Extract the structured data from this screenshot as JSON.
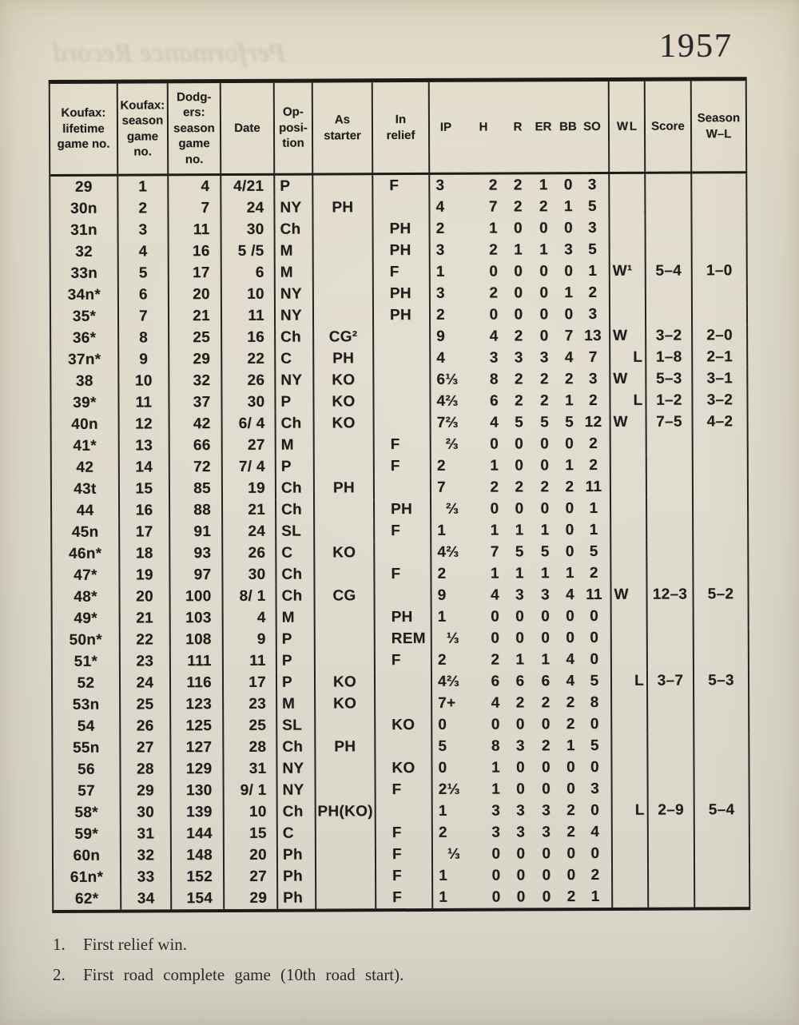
{
  "page": {
    "year": "1957",
    "ghost_text": "Performance Record"
  },
  "table": {
    "headers": {
      "lifetime": "Koufax:\nlifetime\ngame no.",
      "season": "Koufax:\nseason\ngame no.",
      "dodgers": "Dodg-\ners:\nseason\ngame\nno.",
      "date": "Date",
      "opposition": "Op-\nposi-\ntion",
      "as_starter": "As\nstarter",
      "in_relief": "In\nrelief",
      "w_label": "W",
      "l_label": "L",
      "score": "Score",
      "season_wl": "Season\nW–L"
    },
    "stat_headers": [
      "IP",
      "H",
      "R",
      "ER",
      "BB",
      "SO"
    ],
    "rows": [
      {
        "lg": "29",
        "sg": "1",
        "dg": "4",
        "date": "4/21",
        "opp": "P",
        "st": "",
        "rel": "F",
        "ipw": "3",
        "ipf": "",
        "h": "2",
        "r": "2",
        "er": "1",
        "bb": "0",
        "so": "3",
        "w": "",
        "l": "",
        "sc": "",
        "swl": ""
      },
      {
        "lg": "30n",
        "sg": "2",
        "dg": "7",
        "date": "24",
        "opp": "NY",
        "st": "PH",
        "rel": "",
        "ipw": "4",
        "ipf": "",
        "h": "7",
        "r": "2",
        "er": "2",
        "bb": "1",
        "so": "5",
        "w": "",
        "l": "",
        "sc": "",
        "swl": ""
      },
      {
        "lg": "31n",
        "sg": "3",
        "dg": "11",
        "date": "30",
        "opp": "Ch",
        "st": "",
        "rel": "PH",
        "ipw": "2",
        "ipf": "",
        "h": "1",
        "r": "0",
        "er": "0",
        "bb": "0",
        "so": "3",
        "w": "",
        "l": "",
        "sc": "",
        "swl": ""
      },
      {
        "lg": "32",
        "sg": "4",
        "dg": "16",
        "date": "5 /5",
        "opp": "M",
        "st": "",
        "rel": "PH",
        "ipw": "3",
        "ipf": "",
        "h": "2",
        "r": "1",
        "er": "1",
        "bb": "3",
        "so": "5",
        "w": "",
        "l": "",
        "sc": "",
        "swl": ""
      },
      {
        "lg": "33n",
        "sg": "5",
        "dg": "17",
        "date": "6",
        "opp": "M",
        "st": "",
        "rel": "F",
        "ipw": "1",
        "ipf": "",
        "h": "0",
        "r": "0",
        "er": "0",
        "bb": "0",
        "so": "1",
        "w": "W¹",
        "l": "",
        "sc": "5–4",
        "swl": "1–0"
      },
      {
        "lg": "34n*",
        "sg": "6",
        "dg": "20",
        "date": "10",
        "opp": "NY",
        "st": "",
        "rel": "PH",
        "ipw": "3",
        "ipf": "",
        "h": "2",
        "r": "0",
        "er": "0",
        "bb": "1",
        "so": "2",
        "w": "",
        "l": "",
        "sc": "",
        "swl": ""
      },
      {
        "lg": "35*",
        "sg": "7",
        "dg": "21",
        "date": "11",
        "opp": "NY",
        "st": "",
        "rel": "PH",
        "ipw": "2",
        "ipf": "",
        "h": "0",
        "r": "0",
        "er": "0",
        "bb": "0",
        "so": "3",
        "w": "",
        "l": "",
        "sc": "",
        "swl": ""
      },
      {
        "lg": "36*",
        "sg": "8",
        "dg": "25",
        "date": "16",
        "opp": "Ch",
        "st": "CG²",
        "rel": "",
        "ipw": "9",
        "ipf": "",
        "h": "4",
        "r": "2",
        "er": "0",
        "bb": "7",
        "so": "13",
        "w": "W",
        "l": "",
        "sc": "3–2",
        "swl": "2–0"
      },
      {
        "lg": "37n*",
        "sg": "9",
        "dg": "29",
        "date": "22",
        "opp": "C",
        "st": "PH",
        "rel": "",
        "ipw": "4",
        "ipf": "",
        "h": "3",
        "r": "3",
        "er": "3",
        "bb": "4",
        "so": "7",
        "w": "",
        "l": "L",
        "sc": "1–8",
        "swl": "2–1"
      },
      {
        "lg": "38",
        "sg": "10",
        "dg": "32",
        "date": "26",
        "opp": "NY",
        "st": "KO",
        "rel": "",
        "ipw": "6",
        "ipf": "⅓",
        "h": "8",
        "r": "2",
        "er": "2",
        "bb": "2",
        "so": "3",
        "w": "W",
        "l": "",
        "sc": "5–3",
        "swl": "3–1"
      },
      {
        "lg": "39*",
        "sg": "11",
        "dg": "37",
        "date": "30",
        "opp": "P",
        "st": "KO",
        "rel": "",
        "ipw": "4",
        "ipf": "⅔",
        "h": "6",
        "r": "2",
        "er": "2",
        "bb": "1",
        "so": "2",
        "w": "",
        "l": "L",
        "sc": "1–2",
        "swl": "3–2"
      },
      {
        "lg": "40n",
        "sg": "12",
        "dg": "42",
        "date": "6/ 4",
        "opp": "Ch",
        "st": "KO",
        "rel": "",
        "ipw": "7",
        "ipf": "⅔",
        "h": "4",
        "r": "5",
        "er": "5",
        "bb": "5",
        "so": "12",
        "w": "W",
        "l": "",
        "sc": "7–5",
        "swl": "4–2"
      },
      {
        "lg": "41*",
        "sg": "13",
        "dg": "66",
        "date": "27",
        "opp": "M",
        "st": "",
        "rel": "F",
        "ipw": "",
        "ipf": "⅔",
        "h": "0",
        "r": "0",
        "er": "0",
        "bb": "0",
        "so": "2",
        "w": "",
        "l": "",
        "sc": "",
        "swl": ""
      },
      {
        "lg": "42",
        "sg": "14",
        "dg": "72",
        "date": "7/ 4",
        "opp": "P",
        "st": "",
        "rel": "F",
        "ipw": "2",
        "ipf": "",
        "h": "1",
        "r": "0",
        "er": "0",
        "bb": "1",
        "so": "2",
        "w": "",
        "l": "",
        "sc": "",
        "swl": ""
      },
      {
        "lg": "43t",
        "sg": "15",
        "dg": "85",
        "date": "19",
        "opp": "Ch",
        "st": "PH",
        "rel": "",
        "ipw": "7",
        "ipf": "",
        "h": "2",
        "r": "2",
        "er": "2",
        "bb": "2",
        "so": "11",
        "w": "",
        "l": "",
        "sc": "",
        "swl": ""
      },
      {
        "lg": "44",
        "sg": "16",
        "dg": "88",
        "date": "21",
        "opp": "Ch",
        "st": "",
        "rel": "PH",
        "ipw": "",
        "ipf": "⅔",
        "h": "0",
        "r": "0",
        "er": "0",
        "bb": "0",
        "so": "1",
        "w": "",
        "l": "",
        "sc": "",
        "swl": ""
      },
      {
        "lg": "45n",
        "sg": "17",
        "dg": "91",
        "date": "24",
        "opp": "SL",
        "st": "",
        "rel": "F",
        "ipw": "1",
        "ipf": "",
        "h": "1",
        "r": "1",
        "er": "1",
        "bb": "0",
        "so": "1",
        "w": "",
        "l": "",
        "sc": "",
        "swl": ""
      },
      {
        "lg": "46n*",
        "sg": "18",
        "dg": "93",
        "date": "26",
        "opp": "C",
        "st": "KO",
        "rel": "",
        "ipw": "4",
        "ipf": "⅔",
        "h": "7",
        "r": "5",
        "er": "5",
        "bb": "0",
        "so": "5",
        "w": "",
        "l": "",
        "sc": "",
        "swl": ""
      },
      {
        "lg": "47*",
        "sg": "19",
        "dg": "97",
        "date": "30",
        "opp": "Ch",
        "st": "",
        "rel": "F",
        "ipw": "2",
        "ipf": "",
        "h": "1",
        "r": "1",
        "er": "1",
        "bb": "1",
        "so": "2",
        "w": "",
        "l": "",
        "sc": "",
        "swl": ""
      },
      {
        "lg": "48*",
        "sg": "20",
        "dg": "100",
        "date": "8/ 1",
        "opp": "Ch",
        "st": "CG",
        "rel": "",
        "ipw": "9",
        "ipf": "",
        "h": "4",
        "r": "3",
        "er": "3",
        "bb": "4",
        "so": "11",
        "w": "W",
        "l": "",
        "sc": "12–3",
        "swl": "5–2"
      },
      {
        "lg": "49*",
        "sg": "21",
        "dg": "103",
        "date": "4",
        "opp": "M",
        "st": "",
        "rel": "PH",
        "ipw": "1",
        "ipf": "",
        "h": "0",
        "r": "0",
        "er": "0",
        "bb": "0",
        "so": "0",
        "w": "",
        "l": "",
        "sc": "",
        "swl": ""
      },
      {
        "lg": "50n*",
        "sg": "22",
        "dg": "108",
        "date": "9",
        "opp": "P",
        "st": "",
        "rel": "REM",
        "ipw": "",
        "ipf": "⅓",
        "h": "0",
        "r": "0",
        "er": "0",
        "bb": "0",
        "so": "0",
        "w": "",
        "l": "",
        "sc": "",
        "swl": ""
      },
      {
        "lg": "51*",
        "sg": "23",
        "dg": "111",
        "date": "11",
        "opp": "P",
        "st": "",
        "rel": "F",
        "ipw": "2",
        "ipf": "",
        "h": "2",
        "r": "1",
        "er": "1",
        "bb": "4",
        "so": "0",
        "w": "",
        "l": "",
        "sc": "",
        "swl": ""
      },
      {
        "lg": "52",
        "sg": "24",
        "dg": "116",
        "date": "17",
        "opp": "P",
        "st": "KO",
        "rel": "",
        "ipw": "4",
        "ipf": "⅔",
        "h": "6",
        "r": "6",
        "er": "6",
        "bb": "4",
        "so": "5",
        "w": "",
        "l": "L",
        "sc": "3–7",
        "swl": "5–3"
      },
      {
        "lg": "53n",
        "sg": "25",
        "dg": "123",
        "date": "23",
        "opp": "M",
        "st": "KO",
        "rel": "",
        "ipw": "7",
        "ipf": "+",
        "h": "4",
        "r": "2",
        "er": "2",
        "bb": "2",
        "so": "8",
        "w": "",
        "l": "",
        "sc": "",
        "swl": ""
      },
      {
        "lg": "54",
        "sg": "26",
        "dg": "125",
        "date": "25",
        "opp": "SL",
        "st": "",
        "rel": "KO",
        "ipw": "0",
        "ipf": "",
        "h": "0",
        "r": "0",
        "er": "0",
        "bb": "2",
        "so": "0",
        "w": "",
        "l": "",
        "sc": "",
        "swl": ""
      },
      {
        "lg": "55n",
        "sg": "27",
        "dg": "127",
        "date": "28",
        "opp": "Ch",
        "st": "PH",
        "rel": "",
        "ipw": "5",
        "ipf": "",
        "h": "8",
        "r": "3",
        "er": "2",
        "bb": "1",
        "so": "5",
        "w": "",
        "l": "",
        "sc": "",
        "swl": ""
      },
      {
        "lg": "56",
        "sg": "28",
        "dg": "129",
        "date": "31",
        "opp": "NY",
        "st": "",
        "rel": "KO",
        "ipw": "0",
        "ipf": "",
        "h": "1",
        "r": "0",
        "er": "0",
        "bb": "0",
        "so": "0",
        "w": "",
        "l": "",
        "sc": "",
        "swl": ""
      },
      {
        "lg": "57",
        "sg": "29",
        "dg": "130",
        "date": "9/ 1",
        "opp": "NY",
        "st": "",
        "rel": "F",
        "ipw": "2",
        "ipf": "⅓",
        "h": "1",
        "r": "0",
        "er": "0",
        "bb": "0",
        "so": "3",
        "w": "",
        "l": "",
        "sc": "",
        "swl": ""
      },
      {
        "lg": "58*",
        "sg": "30",
        "dg": "139",
        "date": "10",
        "opp": "Ch",
        "st": "PH(KO)",
        "rel": "",
        "ipw": "1",
        "ipf": "",
        "h": "3",
        "r": "3",
        "er": "3",
        "bb": "2",
        "so": "0",
        "w": "",
        "l": "L",
        "sc": "2–9",
        "swl": "5–4"
      },
      {
        "lg": "59*",
        "sg": "31",
        "dg": "144",
        "date": "15",
        "opp": "C",
        "st": "",
        "rel": "F",
        "ipw": "2",
        "ipf": "",
        "h": "3",
        "r": "3",
        "er": "3",
        "bb": "2",
        "so": "4",
        "w": "",
        "l": "",
        "sc": "",
        "swl": ""
      },
      {
        "lg": "60n",
        "sg": "32",
        "dg": "148",
        "date": "20",
        "opp": "Ph",
        "st": "",
        "rel": "F",
        "ipw": "",
        "ipf": "⅓",
        "h": "0",
        "r": "0",
        "er": "0",
        "bb": "0",
        "so": "0",
        "w": "",
        "l": "",
        "sc": "",
        "swl": ""
      },
      {
        "lg": "61n*",
        "sg": "33",
        "dg": "152",
        "date": "27",
        "opp": "Ph",
        "st": "",
        "rel": "F",
        "ipw": "1",
        "ipf": "",
        "h": "0",
        "r": "0",
        "er": "0",
        "bb": "0",
        "so": "2",
        "w": "",
        "l": "",
        "sc": "",
        "swl": ""
      },
      {
        "lg": "62*",
        "sg": "34",
        "dg": "154",
        "date": "29",
        "opp": "Ph",
        "st": "",
        "rel": "F",
        "ipw": "1",
        "ipf": "",
        "h": "0",
        "r": "0",
        "er": "0",
        "bb": "2",
        "so": "1",
        "w": "",
        "l": "",
        "sc": "",
        "swl": ""
      }
    ]
  },
  "footnotes": [
    {
      "num": "1.",
      "text": "First relief win."
    },
    {
      "num": "2.",
      "text": "First road complete game (10th road start)."
    }
  ]
}
